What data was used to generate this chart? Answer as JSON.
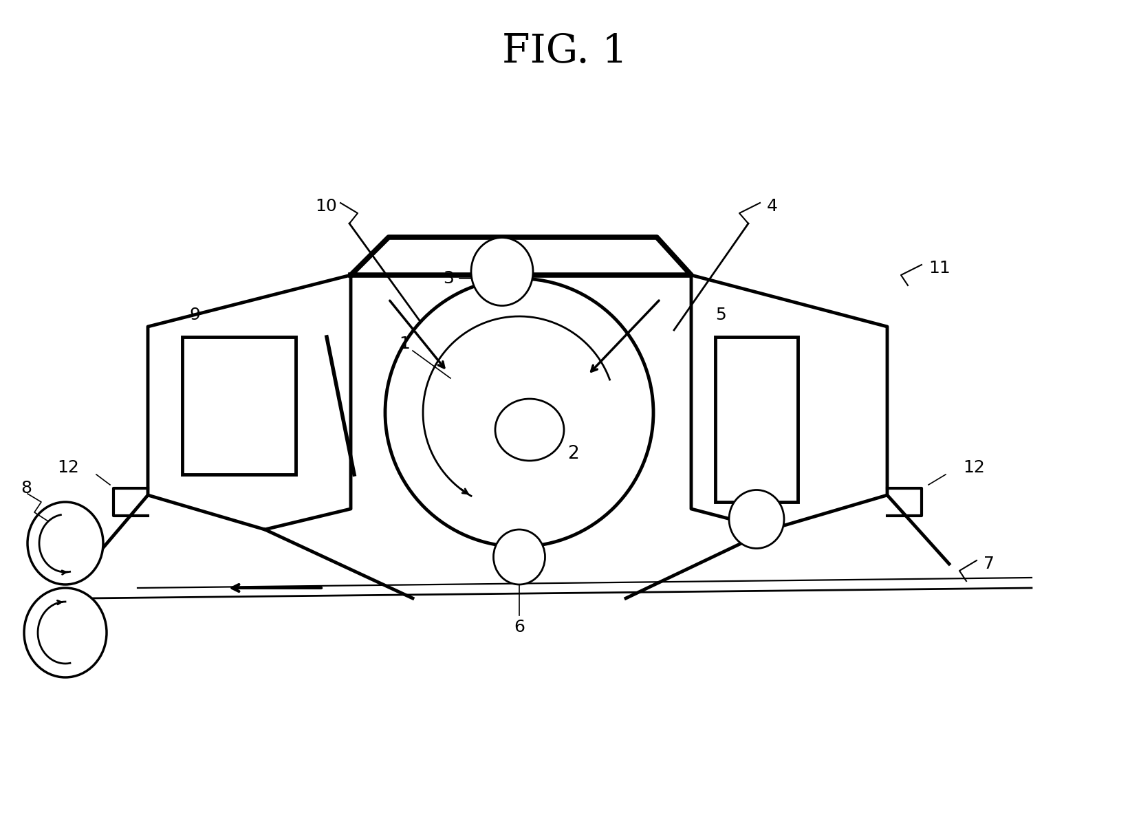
{
  "title": "FIG. 1",
  "title_fontsize": 42,
  "bg_color": "#ffffff",
  "line_color": "#000000",
  "lw": 2.0,
  "tlw": 3.5,
  "fs": 18,
  "figsize": [
    16.43,
    11.91
  ],
  "dpi": 100
}
